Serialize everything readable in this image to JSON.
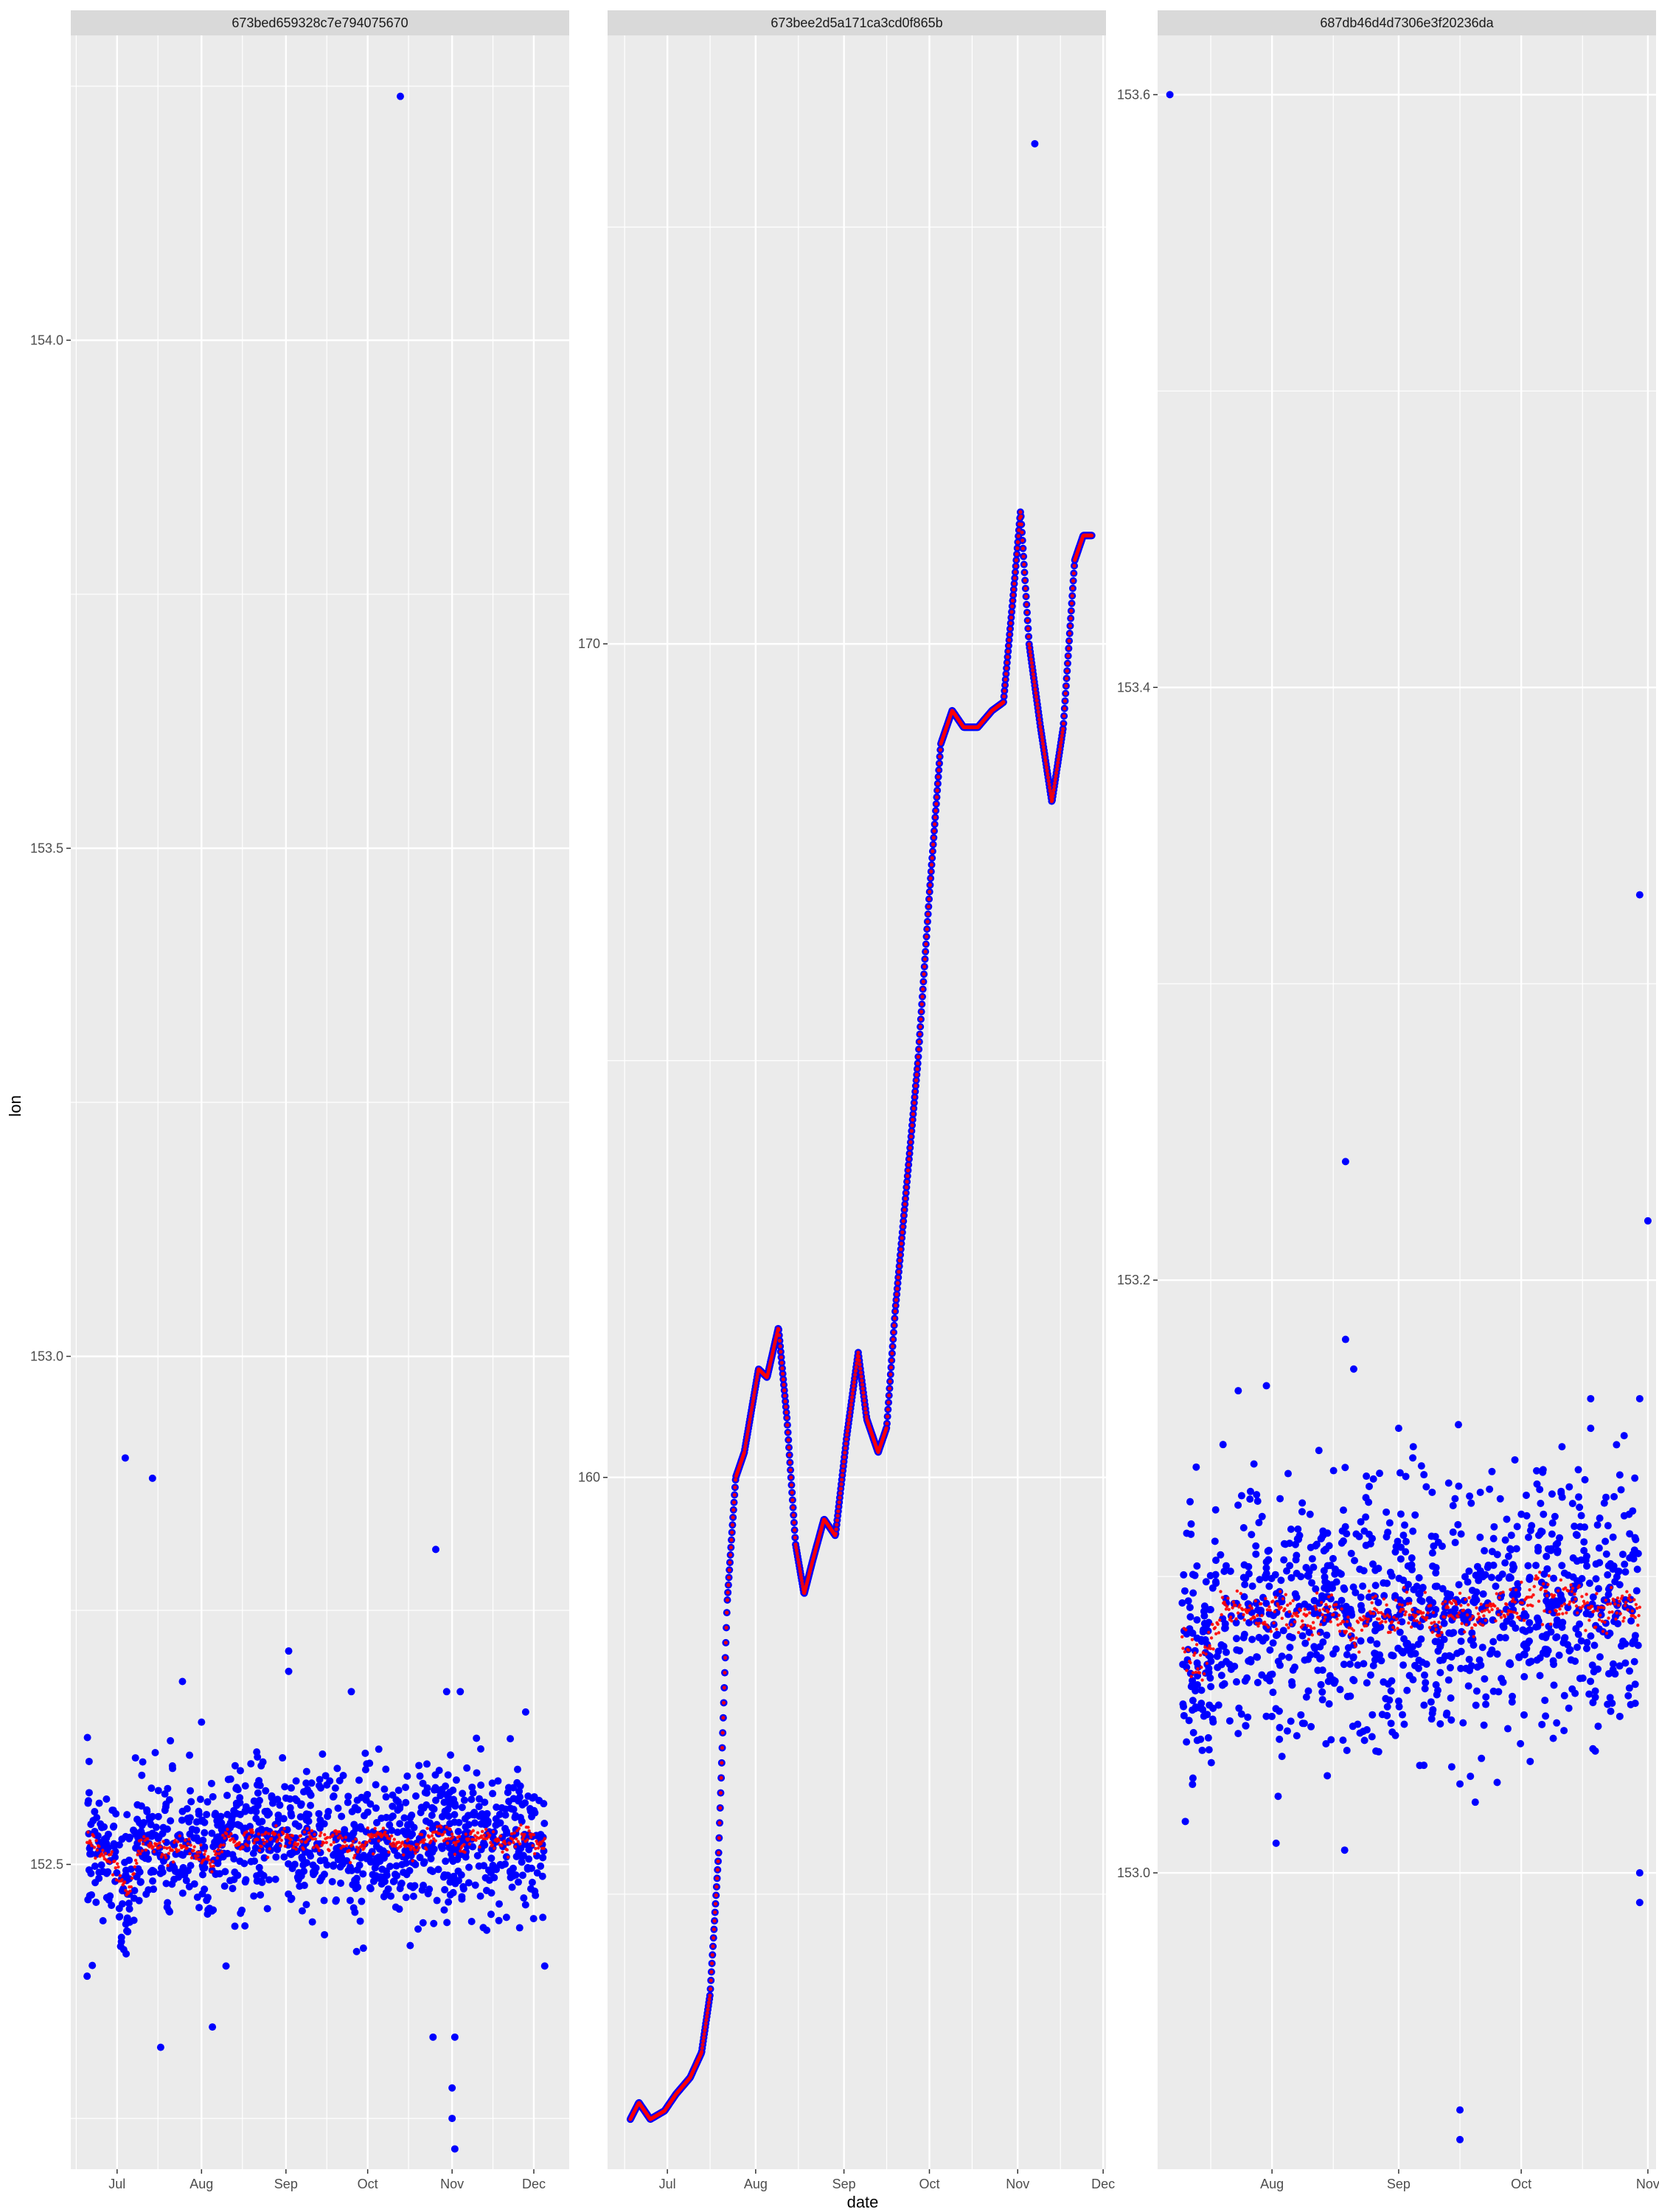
{
  "chart_data": {
    "type": "scatter",
    "xlabel": "date",
    "ylabel": "lon",
    "colors": {
      "raw": "#0000ff",
      "smoothed": "#ff0000",
      "panel_bg": "#ebebeb",
      "strip_bg": "#d9d9d9",
      "grid": "#ffffff"
    },
    "panels": [
      {
        "strip": "673bed659328c7e794075670",
        "xlim": [
          "2024-06-14",
          "2024-12-14"
        ],
        "x_ticks": [
          {
            "date": "2024-07-01",
            "label": "Jul"
          },
          {
            "date": "2024-08-01",
            "label": "Aug"
          },
          {
            "date": "2024-09-01",
            "label": "Sep"
          },
          {
            "date": "2024-10-01",
            "label": "Oct"
          },
          {
            "date": "2024-11-01",
            "label": "Nov"
          },
          {
            "date": "2024-12-01",
            "label": "Dec"
          }
        ],
        "ylim": [
          152.2,
          154.3
        ],
        "y_ticks": [
          152.5,
          153.0,
          153.5,
          154.0
        ],
        "y_tick_labels": [
          "152.5",
          "153.0",
          "153.5",
          "154.0"
        ],
        "raw_trace": [
          [
            "2024-06-20",
            152.53
          ],
          [
            "2024-06-25",
            152.51
          ],
          [
            "2024-06-30",
            152.5
          ],
          [
            "2024-07-05",
            152.47
          ],
          [
            "2024-07-10",
            152.52
          ],
          [
            "2024-07-15",
            152.52
          ],
          [
            "2024-07-20",
            152.51
          ],
          [
            "2024-07-25",
            152.52
          ],
          [
            "2024-07-30",
            152.51
          ],
          [
            "2024-08-05",
            152.5
          ],
          [
            "2024-08-10",
            152.53
          ],
          [
            "2024-08-15",
            152.52
          ],
          [
            "2024-08-20",
            152.53
          ],
          [
            "2024-08-25",
            152.52
          ],
          [
            "2024-08-30",
            152.53
          ],
          [
            "2024-09-05",
            152.52
          ],
          [
            "2024-09-10",
            152.53
          ],
          [
            "2024-09-15",
            152.52
          ],
          [
            "2024-09-20",
            152.53
          ],
          [
            "2024-09-25",
            152.51
          ],
          [
            "2024-09-30",
            152.52
          ],
          [
            "2024-10-05",
            152.53
          ],
          [
            "2024-10-12",
            152.52
          ],
          [
            "2024-10-20",
            152.52
          ],
          [
            "2024-10-28",
            152.53
          ],
          [
            "2024-11-05",
            152.52
          ],
          [
            "2024-11-12",
            152.53
          ],
          [
            "2024-11-20",
            152.52
          ],
          [
            "2024-11-28",
            152.53
          ],
          [
            "2024-12-05",
            152.52
          ]
        ],
        "outliers": [
          [
            "2024-06-20",
            152.39
          ],
          [
            "2024-07-04",
            152.9
          ],
          [
            "2024-07-14",
            152.88
          ],
          [
            "2024-07-25",
            152.68
          ],
          [
            "2024-08-05",
            152.34
          ],
          [
            "2024-08-10",
            152.4
          ],
          [
            "2024-07-17",
            152.32
          ],
          [
            "2024-09-02",
            152.71
          ],
          [
            "2024-09-02",
            152.69
          ],
          [
            "2024-09-25",
            152.67
          ],
          [
            "2024-10-13",
            154.24
          ],
          [
            "2024-10-26",
            152.81
          ],
          [
            "2024-10-30",
            152.67
          ],
          [
            "2024-11-04",
            152.67
          ],
          [
            "2024-11-02",
            152.33
          ],
          [
            "2024-10-25",
            152.33
          ],
          [
            "2024-11-01",
            152.28
          ],
          [
            "2024-11-01",
            152.25
          ],
          [
            "2024-11-02",
            152.22
          ],
          [
            "2024-11-28",
            152.65
          ],
          [
            "2024-12-05",
            152.4
          ],
          [
            "2024-07-15",
            152.61
          ],
          [
            "2024-08-01",
            152.64
          ]
        ]
      },
      {
        "strip": "673bee2d5a171ca3cd0f865b",
        "xlim": [
          "2024-06-10",
          "2024-12-02"
        ],
        "x_ticks": [
          {
            "date": "2024-07-01",
            "label": "Jul"
          },
          {
            "date": "2024-08-01",
            "label": "Aug"
          },
          {
            "date": "2024-09-01",
            "label": "Sep"
          },
          {
            "date": "2024-10-01",
            "label": "Oct"
          },
          {
            "date": "2024-11-01",
            "label": "Nov"
          },
          {
            "date": "2024-12-01",
            "label": "Dec"
          }
        ],
        "ylim": [
          151.7,
          177.3
        ],
        "y_ticks": [
          160,
          170
        ],
        "y_tick_labels": [
          "160",
          "170"
        ],
        "raw_trace": [
          [
            "2024-06-18",
            152.3
          ],
          [
            "2024-06-21",
            152.5
          ],
          [
            "2024-06-25",
            152.3
          ],
          [
            "2024-06-30",
            152.4
          ],
          [
            "2024-07-04",
            152.6
          ],
          [
            "2024-07-09",
            152.8
          ],
          [
            "2024-07-13",
            153.1
          ],
          [
            "2024-07-16",
            153.8
          ],
          [
            "2024-07-19",
            155.5
          ],
          [
            "2024-07-22",
            158.5
          ],
          [
            "2024-07-25",
            160.0
          ],
          [
            "2024-07-28",
            160.3
          ],
          [
            "2024-08-02",
            161.3
          ],
          [
            "2024-08-05",
            161.2
          ],
          [
            "2024-08-09",
            161.8
          ],
          [
            "2024-08-12",
            160.7
          ],
          [
            "2024-08-15",
            159.2
          ],
          [
            "2024-08-18",
            158.6
          ],
          [
            "2024-08-21",
            159.0
          ],
          [
            "2024-08-25",
            159.5
          ],
          [
            "2024-08-29",
            159.3
          ],
          [
            "2024-09-02",
            160.5
          ],
          [
            "2024-09-06",
            161.5
          ],
          [
            "2024-09-09",
            160.7
          ],
          [
            "2024-09-13",
            160.3
          ],
          [
            "2024-09-16",
            160.6
          ],
          [
            "2024-09-19",
            162.0
          ],
          [
            "2024-09-23",
            163.5
          ],
          [
            "2024-09-27",
            165.0
          ],
          [
            "2024-10-01",
            167.0
          ],
          [
            "2024-10-05",
            168.8
          ],
          [
            "2024-10-09",
            169.2
          ],
          [
            "2024-10-13",
            169.0
          ],
          [
            "2024-10-18",
            169.0
          ],
          [
            "2024-10-23",
            169.2
          ],
          [
            "2024-10-27",
            169.3
          ],
          [
            "2024-10-31",
            170.8
          ],
          [
            "2024-11-02",
            171.6
          ],
          [
            "2024-11-05",
            170.0
          ],
          [
            "2024-11-09",
            169.0
          ],
          [
            "2024-11-13",
            168.1
          ],
          [
            "2024-11-17",
            169.0
          ],
          [
            "2024-11-21",
            171.0
          ],
          [
            "2024-11-24",
            171.3
          ],
          [
            "2024-11-27",
            171.3
          ]
        ],
        "outliers": [
          [
            "2024-11-07",
            176.0
          ]
        ]
      },
      {
        "strip": "687db46d4d7306e3f20236da",
        "xlim": [
          "2024-07-04",
          "2024-11-03"
        ],
        "x_ticks": [
          {
            "date": "2024-08-01",
            "label": "Aug"
          },
          {
            "date": "2024-09-01",
            "label": "Sep"
          },
          {
            "date": "2024-10-01",
            "label": "Oct"
          },
          {
            "date": "2024-11-01",
            "label": "Nov"
          }
        ],
        "ylim": [
          152.9,
          153.62
        ],
        "y_ticks": [
          153.0,
          153.2,
          153.4,
          153.6
        ],
        "y_tick_labels": [
          "153.0",
          "153.2",
          "153.4",
          "153.6"
        ],
        "raw_trace": [
          [
            "2024-07-10",
            153.075
          ],
          [
            "2024-07-15",
            153.07
          ],
          [
            "2024-07-20",
            153.09
          ],
          [
            "2024-07-25",
            153.09
          ],
          [
            "2024-07-30",
            153.085
          ],
          [
            "2024-08-05",
            153.09
          ],
          [
            "2024-08-10",
            153.085
          ],
          [
            "2024-08-15",
            153.09
          ],
          [
            "2024-08-20",
            153.08
          ],
          [
            "2024-08-25",
            153.09
          ],
          [
            "2024-08-30",
            153.085
          ],
          [
            "2024-09-05",
            153.09
          ],
          [
            "2024-09-10",
            153.085
          ],
          [
            "2024-09-15",
            153.09
          ],
          [
            "2024-09-20",
            153.085
          ],
          [
            "2024-09-25",
            153.09
          ],
          [
            "2024-09-30",
            153.09
          ],
          [
            "2024-10-05",
            153.095
          ],
          [
            "2024-10-10",
            153.09
          ],
          [
            "2024-10-15",
            153.095
          ],
          [
            "2024-10-20",
            153.085
          ],
          [
            "2024-10-25",
            153.09
          ],
          [
            "2024-10-30",
            153.09
          ]
        ],
        "outliers": [
          [
            "2024-07-07",
            153.6
          ],
          [
            "2024-08-19",
            153.24
          ],
          [
            "2024-08-19",
            153.18
          ],
          [
            "2024-08-21",
            153.17
          ],
          [
            "2024-09-01",
            153.15
          ],
          [
            "2024-09-16",
            153.03
          ],
          [
            "2024-09-16",
            152.92
          ],
          [
            "2024-09-16",
            152.91
          ],
          [
            "2024-10-18",
            153.16
          ],
          [
            "2024-10-18",
            153.15
          ],
          [
            "2024-10-30",
            153.33
          ],
          [
            "2024-10-30",
            153.16
          ],
          [
            "2024-11-01",
            153.22
          ],
          [
            "2024-10-30",
            153.0
          ],
          [
            "2024-10-30",
            152.99
          ],
          [
            "2024-08-02",
            153.01
          ]
        ]
      }
    ]
  }
}
